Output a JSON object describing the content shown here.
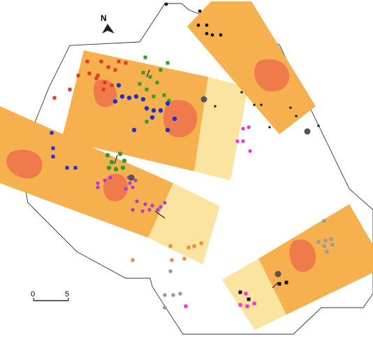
{
  "north": {
    "label": "N"
  },
  "scale": {
    "start_label": "0",
    "end_label": "5"
  },
  "colors": {
    "site_outline": "#333333",
    "band_orange": "#f6b14e",
    "band_pale": "#fbe3a0",
    "patch": "#ef7b4c",
    "red": "#e03a2a",
    "green": "#2aa02a",
    "blue": "#1f2fd0",
    "purple": "#b23ad6",
    "orange": "#f08a3a",
    "gray": "#9a9a9a",
    "magenta": "#ff2ad6",
    "black": "#111111"
  }
}
